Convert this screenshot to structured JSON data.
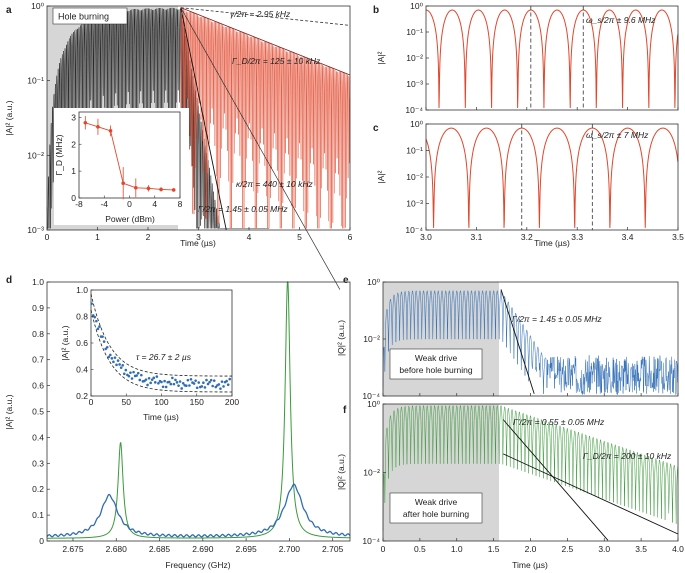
{
  "chart_data": [
    {
      "panel": "a",
      "type": "line",
      "title": "Hole burning",
      "xlabel": "Time (µs)",
      "ylabel": "|A|² (a.u.)",
      "xlim": [
        0,
        6
      ],
      "ylim_exp": [
        -3,
        0
      ],
      "yscale": "log",
      "xticks": [
        "0",
        "1",
        "2",
        "3",
        "4",
        "5",
        "6"
      ],
      "yticks": [
        "10⁰",
        "10⁻¹",
        "10⁻²",
        "10⁻³"
      ],
      "drive_end_us": 2.65,
      "series": [
        {
          "name": "black trace (before hole burning)",
          "color": "#111111",
          "peak": 0.95,
          "rise_time_us": 0.45,
          "decay_rate_per_us": 8.7,
          "osc_period_us": 0.0275
        },
        {
          "name": "red trace (after hole burning)",
          "color": "#e0472c",
          "peak": 0.95,
          "decay_rate_per_us": 0.62,
          "osc_period_us": 0.0275
        }
      ],
      "annotations": [
        {
          "text": "γ/2π = 2.95 kHz"
        },
        {
          "text": "Γ_D/2π = 125 ± 10 kHz"
        },
        {
          "text": "κ/2π = 440 ± 10 kHz"
        },
        {
          "text": "Γ/2π = 1.45 ± 0.05 MHz"
        }
      ],
      "inset": {
        "type": "line",
        "xlabel": "Power (dBm)",
        "ylabel": "Γ_D (MHz)",
        "xlim": [
          -8,
          8
        ],
        "ylim": [
          0,
          3.2
        ],
        "xticks": [
          "-8",
          "-4",
          "0",
          "4",
          "8"
        ],
        "yticks": [
          "0",
          "1",
          "2",
          "3"
        ],
        "x": [
          -7,
          -5,
          -3,
          -1,
          1,
          3,
          5,
          7
        ],
        "y": [
          2.8,
          2.65,
          2.5,
          0.55,
          0.38,
          0.36,
          0.32,
          0.3
        ],
        "yerr": [
          0.25,
          0.3,
          0.2,
          0.6,
          0.35,
          0.12,
          0.08,
          0.06
        ]
      }
    },
    {
      "panel": "b",
      "type": "line",
      "xlabel": "",
      "ylabel": "|A|²",
      "xlim": [
        3.0,
        3.5
      ],
      "ylim_exp": [
        -4,
        0
      ],
      "yscale": "log",
      "yticks": [
        "10⁰",
        "10⁻¹",
        "10⁻²",
        "10⁻³",
        "10⁻⁴"
      ],
      "annotation": "ω_s/2π ± 9.6 MHz",
      "period_us": 0.052,
      "first_max_us": 3.0,
      "dashed_lines_us": [
        3.208,
        3.312
      ]
    },
    {
      "panel": "c",
      "type": "line",
      "xlabel": "Time (µs)",
      "ylabel": "|A|²",
      "xlim": [
        3.0,
        3.5
      ],
      "ylim_exp": [
        -4,
        0
      ],
      "yscale": "log",
      "xticks": [
        "3.0",
        "3.1",
        "3.2",
        "3.3",
        "3.4",
        "3.5"
      ],
      "yticks": [
        "10⁰",
        "10⁻¹",
        "10⁻²",
        "10⁻³",
        "10⁻⁴"
      ],
      "annotation": "ω_s/2π ± 7 MHz",
      "period_us": 0.07,
      "first_max_us": 3.05,
      "dashed_lines_us": [
        3.19,
        3.33
      ]
    },
    {
      "panel": "d",
      "type": "line",
      "xlabel": "Frequency (GHz)",
      "ylabel": "|A|² (a.u.)",
      "xlim": [
        2.672,
        2.707
      ],
      "ylim": [
        0,
        1.0
      ],
      "xticks": [
        "2.675",
        "2.680",
        "2.685",
        "2.690",
        "2.695",
        "2.700",
        "2.705"
      ],
      "yticks": [
        "0",
        "0.1",
        "0.2",
        "0.3",
        "0.4",
        "0.5",
        "0.6",
        "0.7",
        "0.8",
        "0.9",
        "1.0"
      ],
      "series": [
        {
          "name": "green (narrow peaks)",
          "color": "#3a9a3a",
          "peaks": [
            {
              "center_ghz": 2.6805,
              "height": 0.37,
              "hwhm_ghz": 0.00035
            },
            {
              "center_ghz": 2.6998,
              "height": 1.0,
              "hwhm_ghz": 0.00035
            }
          ],
          "baseline": 0.01
        },
        {
          "name": "blue (split peaks)",
          "color": "#2f6db5",
          "peaks": [
            {
              "center_ghz": 2.6792,
              "height": 0.16,
              "hwhm_ghz": 0.0012
            },
            {
              "center_ghz": 2.7005,
              "height": 0.2,
              "hwhm_ghz": 0.0013
            }
          ],
          "baseline": 0.015
        }
      ],
      "inset": {
        "type": "scatter",
        "xlabel": "Time (µs)",
        "ylabel": "|A|² (a.u.)",
        "xlim": [
          0,
          200
        ],
        "ylim": [
          0.2,
          1.0
        ],
        "xticks": [
          "0",
          "50",
          "100",
          "150",
          "200"
        ],
        "yticks": [
          "0.2",
          "0.4",
          "0.6",
          "0.8",
          "1.0"
        ],
        "annotation": "τ = 26.7 ± 2 µs",
        "fit": {
          "tau_us": 26.7,
          "offset": 0.29,
          "amplitude": 0.62
        },
        "envelope_offsets": [
          0.06,
          -0.06
        ]
      }
    },
    {
      "panel": "e",
      "type": "line",
      "xlabel": "",
      "ylabel": "|Q|² (a.u.)",
      "xlim": [
        0,
        4.0
      ],
      "ylim_exp": [
        -4,
        0
      ],
      "yscale": "log",
      "yticks": [
        "10⁰",
        "10⁻²",
        "10⁻⁴"
      ],
      "drive_end_us": 1.6,
      "series_color": "#2f6db5",
      "annotation": "Γ/2π = 1.45 ± 0.05 MHz",
      "label": [
        "Weak drive",
        "before hole burning"
      ]
    },
    {
      "panel": "f",
      "type": "line",
      "xlabel": "Time (µs)",
      "ylabel": "|Q|² (a.u.)",
      "xlim": [
        0,
        4.0
      ],
      "ylim_exp": [
        -4,
        0
      ],
      "yscale": "log",
      "xticks": [
        "0",
        "0.5",
        "1.0",
        "1.5",
        "2.0",
        "2.5",
        "3.0",
        "3.5",
        "4.0"
      ],
      "yticks": [
        "10⁰",
        "10⁻²",
        "10⁻⁴"
      ],
      "drive_end_us": 1.6,
      "series_color": "#3a9a3a",
      "annotations": [
        {
          "text": "Γ′/2π = 0.55 ± 0.05 MHz"
        },
        {
          "text": "Γ_D/2π = 200 ± 10 kHz"
        }
      ],
      "label": [
        "Weak drive",
        "after hole burning"
      ]
    }
  ]
}
